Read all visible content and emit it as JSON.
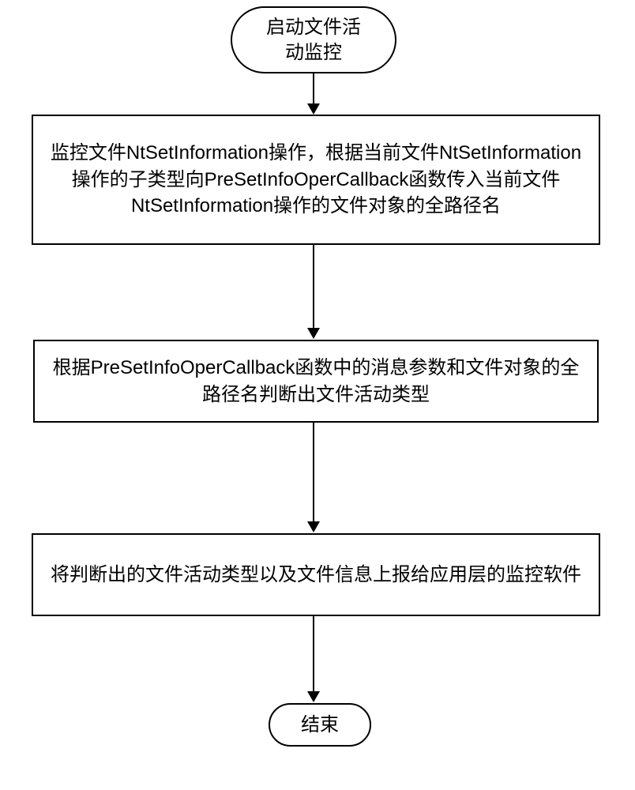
{
  "flowchart": {
    "type": "flowchart",
    "background_color": "#ffffff",
    "border_color": "#000000",
    "text_color": "#000000",
    "font_size": 24,
    "nodes": {
      "start": {
        "label": "启动文件活\n动监控",
        "shape": "terminal"
      },
      "process1": {
        "label": "监控文件NtSetInformation操作，根据当前文件NtSetInformation操作的子类型向PreSetInfoOperCallback函数传入当前文件NtSetInformation操作的文件对象的全路径名",
        "shape": "process"
      },
      "process2": {
        "label": "根据PreSetInfoOperCallback函数中的消息参数和文件对象的全路径名判断出文件活动类型",
        "shape": "process"
      },
      "process3": {
        "label": "将判断出的文件活动类型以及文件信息上报给应用层的监控软件",
        "shape": "process"
      },
      "end": {
        "label": "结束",
        "shape": "terminal"
      }
    },
    "edges": [
      {
        "from": "start",
        "to": "process1"
      },
      {
        "from": "process1",
        "to": "process2"
      },
      {
        "from": "process2",
        "to": "process3"
      },
      {
        "from": "process3",
        "to": "end"
      }
    ]
  }
}
